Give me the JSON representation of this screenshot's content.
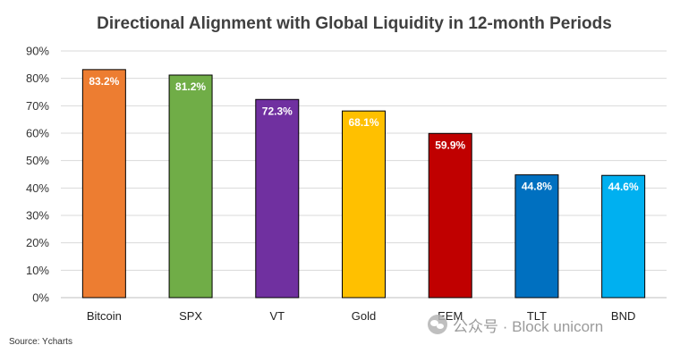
{
  "chart_data": {
    "type": "bar",
    "title": "Directional Alignment with Global Liquidity in 12-month Periods",
    "xlabel": "",
    "ylabel": "",
    "ylim": [
      0,
      90
    ],
    "yticks": [
      0,
      10,
      20,
      30,
      40,
      50,
      60,
      70,
      80,
      90
    ],
    "tick_suffix": "%",
    "grid": true,
    "legend": "none",
    "categories": [
      "Bitcoin",
      "SPX",
      "VT",
      "Gold",
      "EEM",
      "TLT",
      "BND"
    ],
    "values": [
      83.2,
      81.2,
      72.3,
      68.1,
      59.9,
      44.8,
      44.6
    ],
    "data_labels": [
      "83.2%",
      "81.2%",
      "72.3%",
      "68.1%",
      "59.9%",
      "44.8%",
      "44.6%"
    ],
    "colors": [
      "#ED7D31",
      "#70AD47",
      "#7030A0",
      "#FFC000",
      "#C00000",
      "#0070C0",
      "#00B0F0"
    ]
  },
  "source": "Source: Ycharts",
  "watermark": {
    "icon": "wechat-icon",
    "text": "公众号 · Block unicorn"
  }
}
